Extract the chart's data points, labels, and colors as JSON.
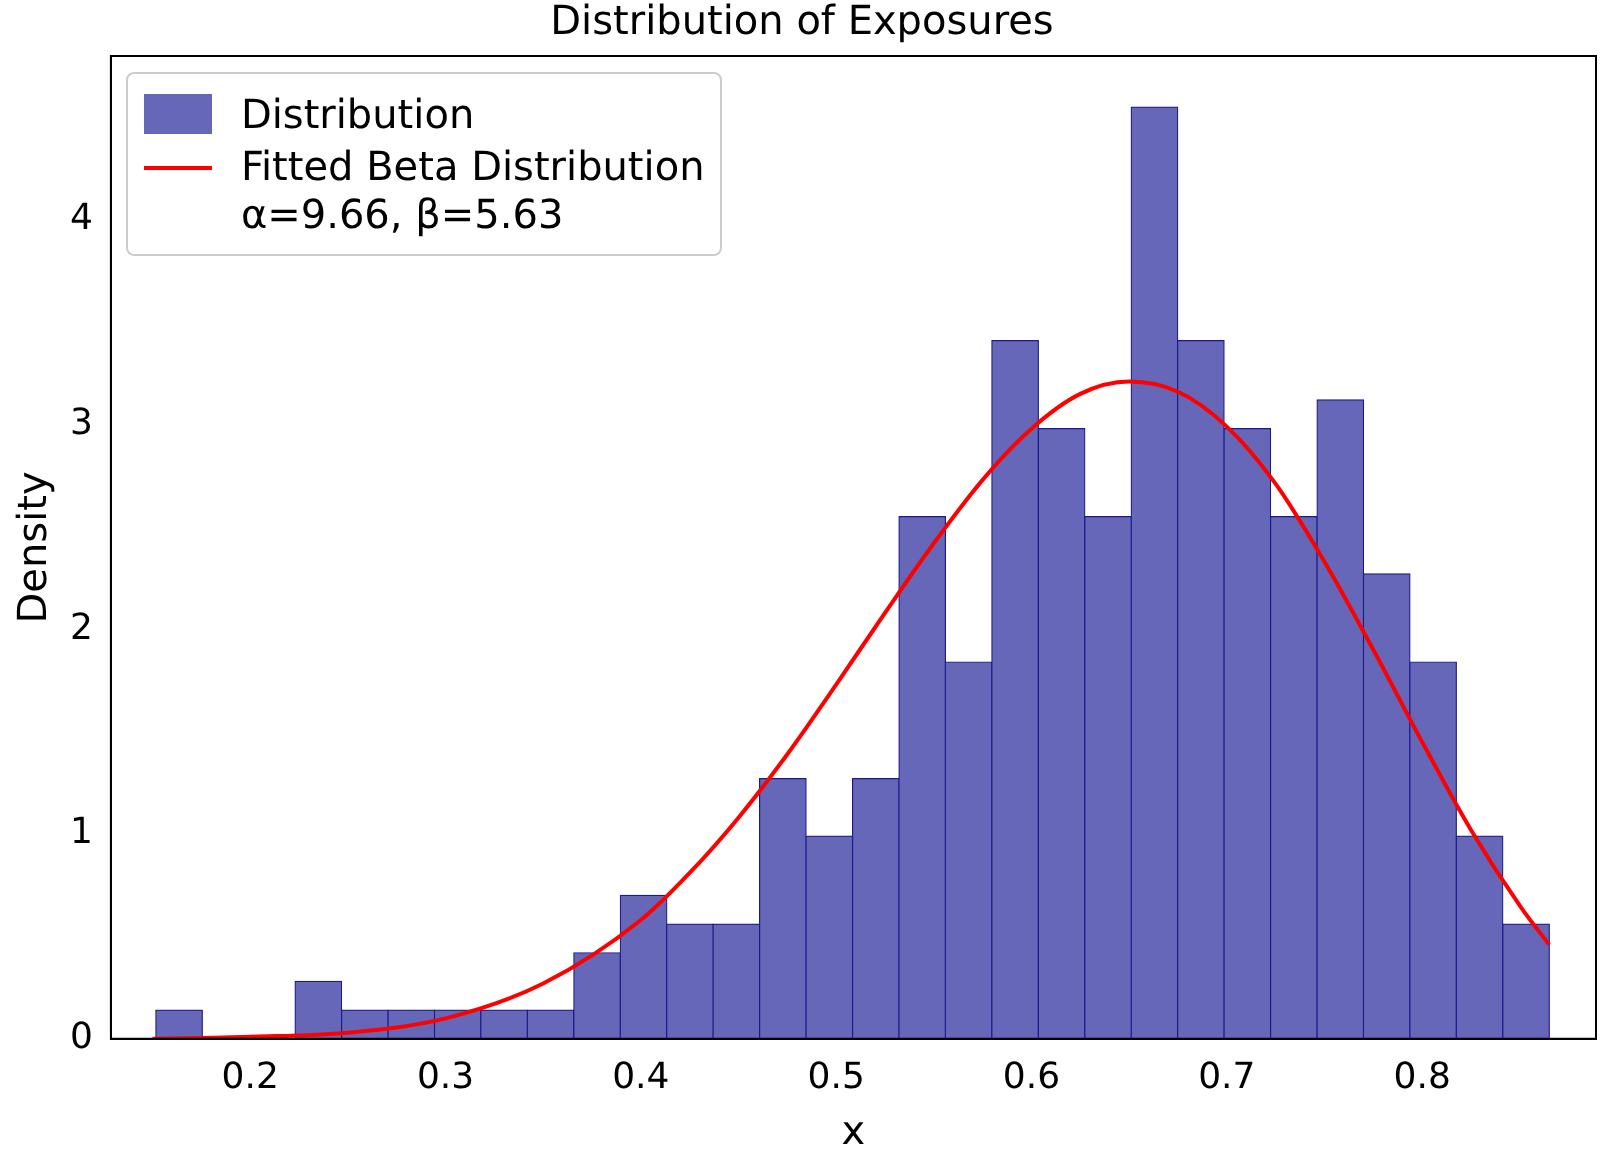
{
  "chart_data": {
    "type": "histogram",
    "title": "Distribution of Exposures",
    "xlabel": "x",
    "ylabel": "Density",
    "bins": [
      0.1517,
      0.1755,
      0.1993,
      0.223,
      0.2468,
      0.2706,
      0.2944,
      0.3181,
      0.3419,
      0.3657,
      0.3895,
      0.4133,
      0.437,
      0.4608,
      0.4846,
      0.5084,
      0.5322,
      0.5559,
      0.5797,
      0.6035,
      0.6273,
      0.6511,
      0.6748,
      0.6986,
      0.7224,
      0.7462,
      0.77,
      0.7937,
      0.8175,
      0.8413,
      0.8651
    ],
    "series": [
      {
        "name": "Distribution",
        "color": "#6667b8",
        "values": [
          0.14,
          0,
          0,
          0.28,
          0.14,
          0.14,
          0.14,
          0.14,
          0.14,
          0.42,
          0.7,
          0.56,
          0.56,
          1.27,
          0.99,
          1.27,
          2.55,
          1.84,
          3.41,
          2.98,
          2.55,
          4.55,
          3.41,
          2.98,
          2.55,
          3.12,
          2.27,
          1.84,
          0.99,
          0.56
        ]
      },
      {
        "name": "Fitted Beta Distribution\nα=9.66, β=5.63",
        "type": "line",
        "color": "#ff0000",
        "x": [
          0.15,
          0.2,
          0.25,
          0.3,
          0.35,
          0.4,
          0.425,
          0.45,
          0.475,
          0.5,
          0.525,
          0.55,
          0.575,
          0.6,
          0.625,
          0.65,
          0.675,
          0.7,
          0.725,
          0.75,
          0.775,
          0.8,
          0.825,
          0.85,
          0.865
        ],
        "values": [
          0.0,
          0.01,
          0.03,
          0.1,
          0.27,
          0.58,
          0.81,
          1.08,
          1.39,
          1.73,
          2.08,
          2.42,
          2.73,
          2.98,
          3.15,
          3.21,
          3.16,
          2.99,
          2.71,
          2.33,
          1.9,
          1.45,
          1.02,
          0.65,
          0.46
        ]
      }
    ],
    "xlim": [
      0.1287,
      0.889
    ],
    "ylim": [
      0,
      4.8
    ],
    "xticks": [
      0.2,
      0.3,
      0.4,
      0.5,
      0.6,
      0.7,
      0.8
    ],
    "yticks": [
      0,
      1,
      2,
      3,
      4
    ],
    "grid": false,
    "legend": "top left",
    "marker": "none",
    "line_style": "solid"
  }
}
